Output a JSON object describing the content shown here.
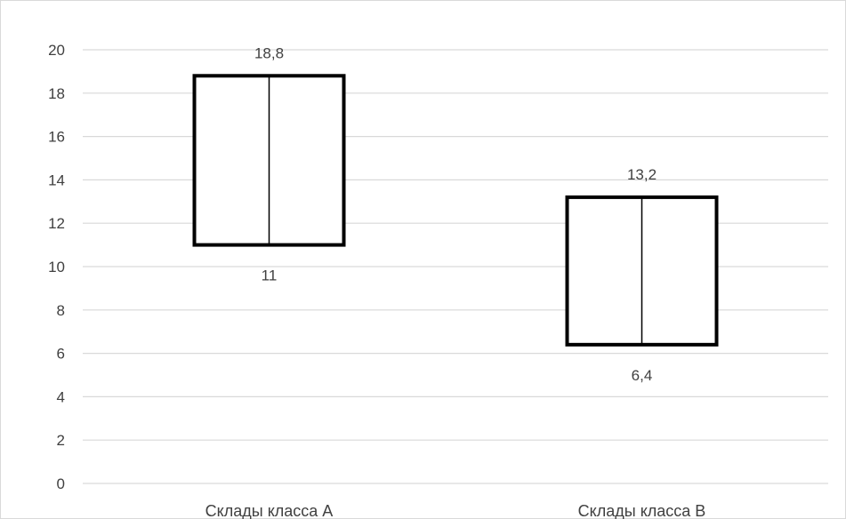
{
  "chart_data": {
    "type": "bar",
    "subtype": "floating-range",
    "title": "",
    "xlabel": "",
    "ylabel": "",
    "ylim": [
      0,
      20
    ],
    "yticks": [
      "0",
      "2",
      "4",
      "6",
      "8",
      "10",
      "12",
      "14",
      "16",
      "18",
      "20"
    ],
    "grid": true,
    "legend": "none",
    "categories": [
      "Склады класса А",
      "Склады класса В"
    ],
    "ranges": [
      {
        "low": 11,
        "high": 18.8,
        "low_label": "11",
        "high_label": "18,8"
      },
      {
        "low": 6.4,
        "high": 13.2,
        "low_label": "6,4",
        "high_label": "13,2"
      }
    ],
    "colors": {
      "box_stroke": "#000000",
      "gridline": "#d9d9d9",
      "text": "#404040"
    }
  }
}
